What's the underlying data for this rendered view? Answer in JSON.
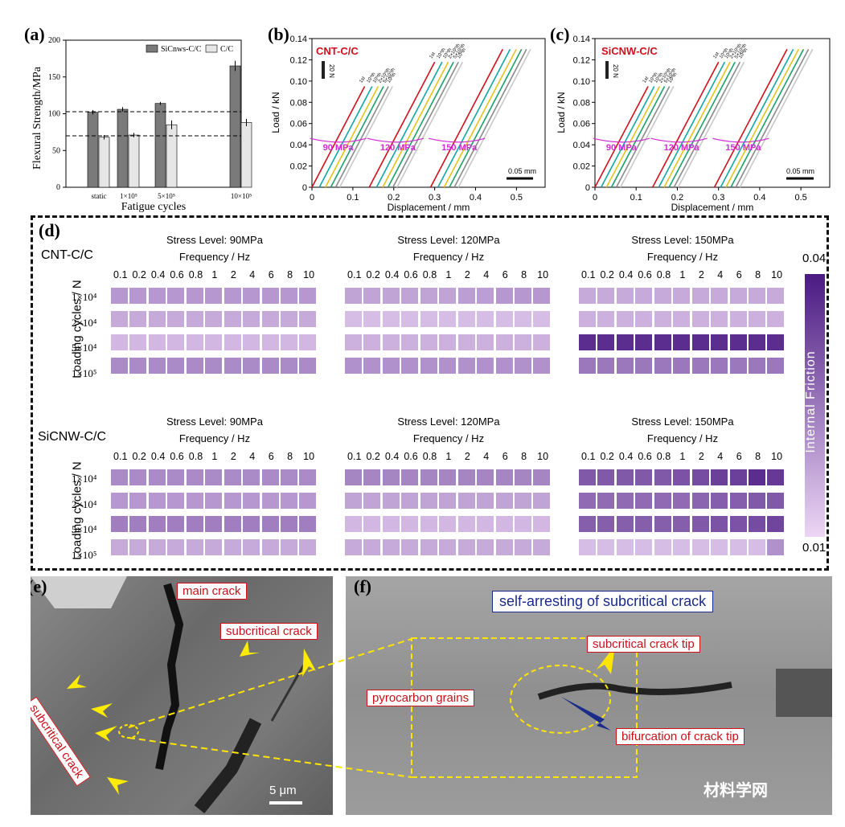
{
  "panels": {
    "a": "(a)",
    "b": "(b)",
    "c": "(c)",
    "d": "(d)",
    "e": "(e)",
    "f": "(f)"
  },
  "chart_a": {
    "ylabel": "Flexural Strength/MPa",
    "xlabel": "Fatigue cycles",
    "categories": [
      "static",
      "1×10⁵",
      "5×10⁵",
      "10×10⁵"
    ],
    "yticks": [
      "0",
      "50",
      "100",
      "150",
      "200"
    ],
    "legend": [
      "SiCnws-C/C",
      "C/C"
    ],
    "colors": {
      "sicnws": "#7a7a7a",
      "cc": "#e6e6e6"
    }
  },
  "chart_b": {
    "title": "CNT-C/C",
    "xlabel": "Displacement / mm",
    "ylabel": "Load / kN",
    "xticks": [
      "0",
      "0.1",
      "0.2",
      "0.3",
      "0.4",
      "0.5"
    ],
    "yticks": [
      "0",
      "0.02",
      "0.04",
      "0.06",
      "0.08",
      "0.10",
      "0.12",
      "0.14"
    ],
    "groups": [
      "90 MPa",
      "120 MPa",
      "150 MPa"
    ],
    "cycles": [
      "1st",
      "10⁴th",
      "10⁵th",
      "2×10⁵th",
      "5×10⁵th",
      "10⁶th"
    ],
    "scalebar": "0.05 mm",
    "loadbar": "20 N"
  },
  "chart_c": {
    "title": "SiCNW-C/C",
    "xlabel": "Displacement / mm",
    "ylabel": "Load / kN",
    "xticks": [
      "0",
      "0.1",
      "0.2",
      "0.3",
      "0.4",
      "0.5"
    ],
    "yticks": [
      "0",
      "0.02",
      "0.04",
      "0.06",
      "0.08",
      "0.10",
      "0.12",
      "0.14"
    ],
    "groups": [
      "90 MPa",
      "120 MPa",
      "150 MPa"
    ],
    "cycles": [
      "1st",
      "10⁴th",
      "10⁵th",
      "2×10⁵th",
      "5×10⁵th",
      "10⁶th"
    ],
    "scalebar": "0.05 mm",
    "loadbar": "20 N"
  },
  "chart_data": {
    "type": "heatmap",
    "stress_levels": [
      "Stress Level: 90MPa",
      "Stress Level: 120MPa",
      "Stress Level: 150MPa"
    ],
    "freq_title": "Frequency / Hz",
    "frequencies": [
      "0.1",
      "0.2",
      "0.4",
      "0.6",
      "0.8",
      "1",
      "2",
      "4",
      "6",
      "8",
      "10"
    ],
    "cycles": [
      "1×10⁴",
      "2×10⁴",
      "5×10⁴",
      "1×10⁵"
    ],
    "ylabel": "Loading cycles / N",
    "colorbar": {
      "min": "0.01",
      "max": "0.04",
      "label": "Internal Friction",
      "low": "#ecd6f5",
      "high": "#4a1a82"
    },
    "materials": [
      {
        "name": "CNT-C/C",
        "blocks": [
          [
            [
              0.02,
              0.02,
              0.02,
              0.02,
              0.02,
              0.02,
              0.02,
              0.02,
              0.02,
              0.02,
              0.02
            ],
            [
              0.017,
              0.017,
              0.017,
              0.017,
              0.017,
              0.017,
              0.017,
              0.017,
              0.017,
              0.017,
              0.017
            ],
            [
              0.015,
              0.015,
              0.015,
              0.015,
              0.015,
              0.015,
              0.015,
              0.015,
              0.015,
              0.015,
              0.015
            ],
            [
              0.022,
              0.022,
              0.022,
              0.022,
              0.022,
              0.022,
              0.022,
              0.022,
              0.022,
              0.022,
              0.022
            ]
          ],
          [
            [
              0.018,
              0.018,
              0.018,
              0.018,
              0.018,
              0.018,
              0.019,
              0.019,
              0.02,
              0.02,
              0.02
            ],
            [
              0.014,
              0.014,
              0.014,
              0.014,
              0.014,
              0.014,
              0.014,
              0.014,
              0.014,
              0.014,
              0.014
            ],
            [
              0.016,
              0.016,
              0.016,
              0.016,
              0.016,
              0.016,
              0.016,
              0.016,
              0.016,
              0.016,
              0.016
            ],
            [
              0.021,
              0.021,
              0.021,
              0.021,
              0.021,
              0.021,
              0.021,
              0.021,
              0.021,
              0.021,
              0.021
            ]
          ],
          [
            [
              0.017,
              0.017,
              0.017,
              0.017,
              0.017,
              0.017,
              0.017,
              0.017,
              0.017,
              0.017,
              0.017
            ],
            [
              0.016,
              0.016,
              0.016,
              0.016,
              0.016,
              0.016,
              0.016,
              0.016,
              0.016,
              0.016,
              0.016
            ],
            [
              0.037,
              0.037,
              0.037,
              0.037,
              0.037,
              0.037,
              0.037,
              0.037,
              0.037,
              0.037,
              0.037
            ],
            [
              0.025,
              0.025,
              0.025,
              0.025,
              0.025,
              0.025,
              0.025,
              0.025,
              0.025,
              0.025,
              0.025
            ]
          ]
        ]
      },
      {
        "name": "SiCNW-C/C",
        "blocks": [
          [
            [
              0.022,
              0.022,
              0.022,
              0.022,
              0.022,
              0.022,
              0.022,
              0.022,
              0.022,
              0.022,
              0.022
            ],
            [
              0.02,
              0.02,
              0.02,
              0.02,
              0.02,
              0.02,
              0.02,
              0.02,
              0.02,
              0.02,
              0.02
            ],
            [
              0.024,
              0.024,
              0.024,
              0.024,
              0.024,
              0.024,
              0.024,
              0.024,
              0.024,
              0.024,
              0.024
            ],
            [
              0.017,
              0.017,
              0.017,
              0.017,
              0.017,
              0.017,
              0.017,
              0.017,
              0.017,
              0.017,
              0.017
            ]
          ],
          [
            [
              0.023,
              0.023,
              0.023,
              0.023,
              0.023,
              0.023,
              0.023,
              0.023,
              0.023,
              0.023,
              0.023
            ],
            [
              0.018,
              0.018,
              0.018,
              0.018,
              0.018,
              0.018,
              0.018,
              0.018,
              0.018,
              0.018,
              0.018
            ],
            [
              0.015,
              0.015,
              0.015,
              0.015,
              0.015,
              0.015,
              0.015,
              0.015,
              0.015,
              0.015,
              0.015
            ],
            [
              0.017,
              0.017,
              0.017,
              0.017,
              0.017,
              0.017,
              0.017,
              0.017,
              0.017,
              0.017,
              0.017
            ]
          ],
          [
            [
              0.03,
              0.03,
              0.03,
              0.03,
              0.03,
              0.031,
              0.032,
              0.034,
              0.034,
              0.037,
              0.035
            ],
            [
              0.027,
              0.027,
              0.027,
              0.027,
              0.027,
              0.027,
              0.028,
              0.029,
              0.029,
              0.03,
              0.03
            ],
            [
              0.029,
              0.029,
              0.029,
              0.029,
              0.029,
              0.029,
              0.03,
              0.031,
              0.031,
              0.032,
              0.033
            ],
            [
              0.014,
              0.014,
              0.014,
              0.014,
              0.014,
              0.014,
              0.014,
              0.014,
              0.014,
              0.014,
              0.021
            ]
          ]
        ]
      }
    ]
  },
  "sem_e": {
    "labels": [
      "main crack",
      "subcritical crack",
      "subcritical crack"
    ],
    "scalebar": "5 μm"
  },
  "sem_f": {
    "title": "self-arresting of subcritical crack",
    "labels": [
      "subcritical crack tip",
      "pyrocarbon grains",
      "bifurcation of crack tip"
    ]
  },
  "watermark": "材料学网"
}
